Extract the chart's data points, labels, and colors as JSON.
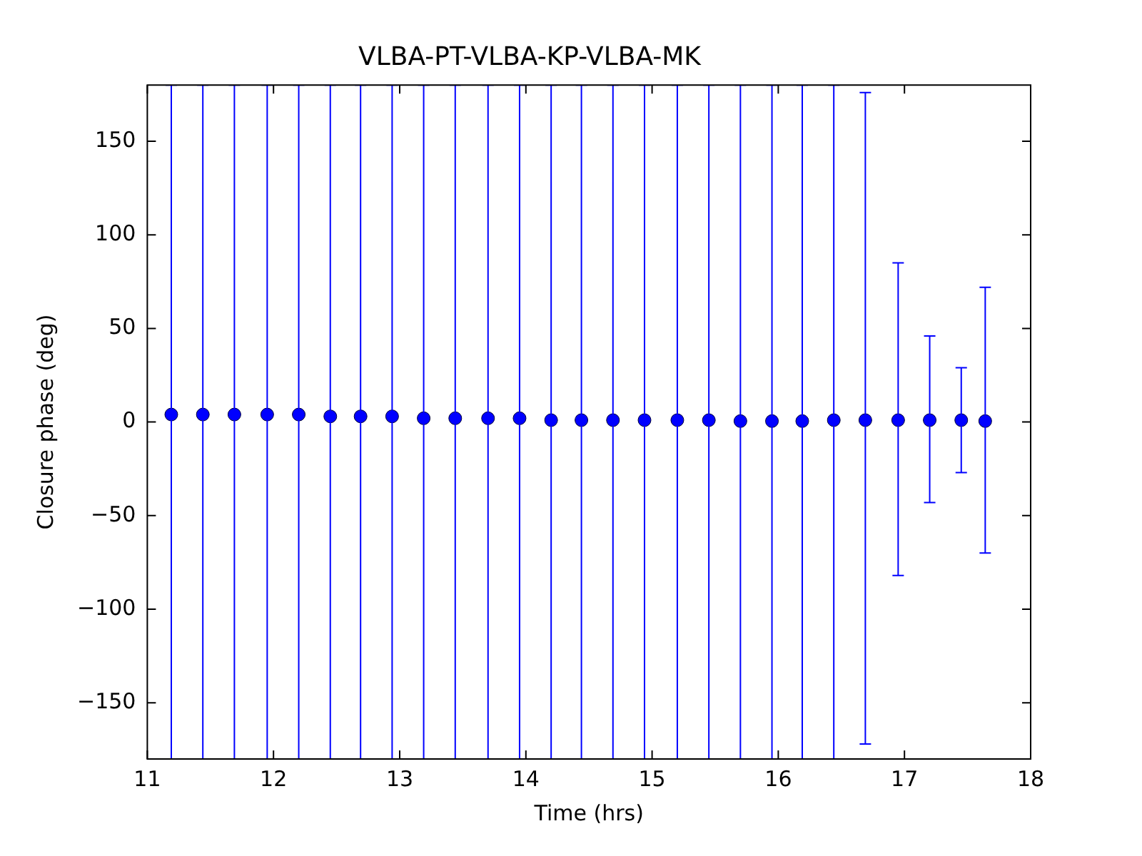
{
  "chart_data": {
    "type": "scatter",
    "title": "VLBA-PT-VLBA-KP-VLBA-MK",
    "xlabel": "Time (hrs)",
    "ylabel": "Closure phase (deg)",
    "x": [
      11.19,
      11.44,
      11.69,
      11.95,
      12.2,
      12.45,
      12.69,
      12.94,
      13.19,
      13.44,
      13.7,
      13.95,
      14.2,
      14.44,
      14.69,
      14.94,
      15.2,
      15.45,
      15.7,
      15.95,
      16.19,
      16.44,
      16.69,
      16.95,
      17.2,
      17.45,
      17.64
    ],
    "values": [
      4,
      4,
      4,
      4,
      4,
      3,
      3,
      3,
      2,
      2,
      2,
      2,
      1,
      1,
      1,
      1,
      1,
      1,
      0.5,
      0.5,
      0.5,
      1,
      1,
      1,
      1,
      1,
      0.5
    ],
    "errors": [
      [
        -180,
        180
      ],
      [
        -180,
        180
      ],
      [
        -180,
        180
      ],
      [
        -180,
        180
      ],
      [
        -180,
        180
      ],
      [
        -180,
        180
      ],
      [
        -180,
        180
      ],
      [
        -180,
        180
      ],
      [
        -180,
        180
      ],
      [
        -180,
        180
      ],
      [
        -180,
        180
      ],
      [
        -180,
        180
      ],
      [
        -180,
        180
      ],
      [
        -180,
        180
      ],
      [
        -180,
        180
      ],
      [
        -180,
        180
      ],
      [
        -180,
        180
      ],
      [
        -180,
        180
      ],
      [
        -180,
        180
      ],
      [
        -180,
        180
      ],
      [
        -180,
        180
      ],
      [
        -180,
        180
      ],
      [
        -172,
        176
      ],
      [
        -82,
        85
      ],
      [
        -43,
        46
      ],
      [
        -27,
        29
      ],
      [
        -70,
        72
      ]
    ],
    "color": "#0000ff",
    "marker": "circle",
    "grid": false,
    "legend": false,
    "xlim": [
      11,
      18
    ],
    "xticks": [
      11,
      12,
      13,
      14,
      15,
      16,
      17,
      18
    ],
    "ylim": [
      -180,
      180
    ],
    "yticks": [
      -150,
      -100,
      -50,
      0,
      50,
      100,
      150
    ]
  }
}
